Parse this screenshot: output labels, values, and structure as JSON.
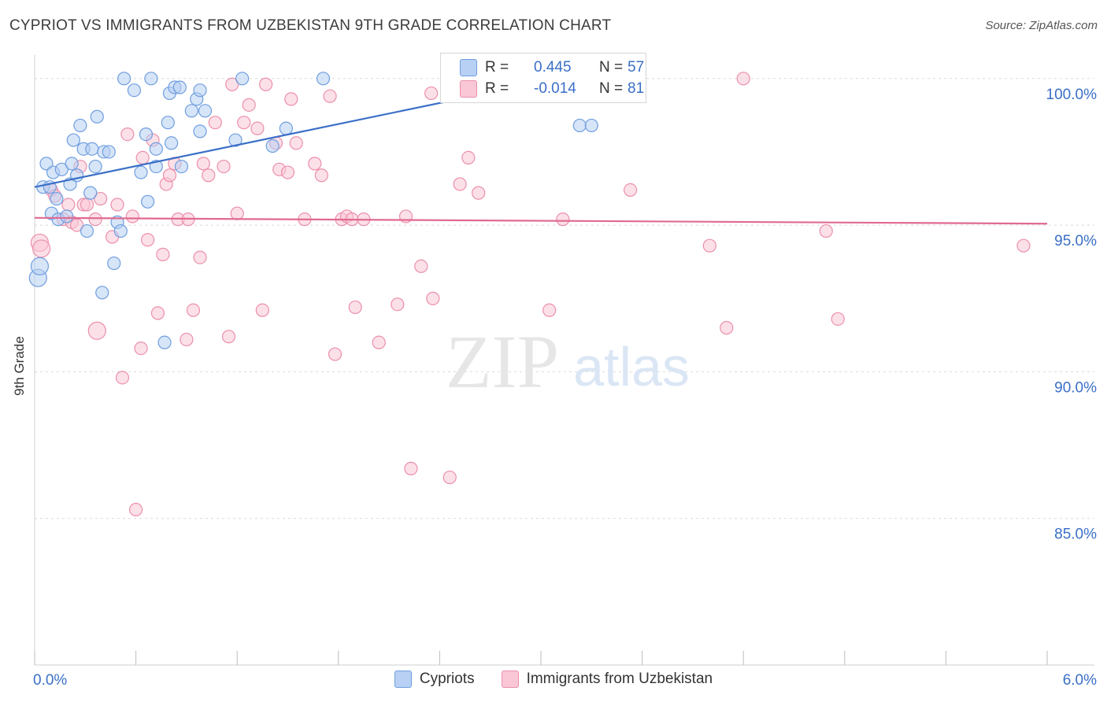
{
  "header": {
    "title": "CYPRIOT VS IMMIGRANTS FROM UZBEKISTAN 9TH GRADE CORRELATION CHART",
    "source": "Source: ZipAtlas.com"
  },
  "watermark": {
    "zip": "ZIP",
    "atlas": "atlas"
  },
  "stats": {
    "blue": {
      "r_label": "R =",
      "r_value": "0.445",
      "n_label": "N =",
      "n_value": "57"
    },
    "pink": {
      "r_label": "R =",
      "r_value": "-0.014",
      "n_label": "N =",
      "n_value": "81"
    }
  },
  "colors": {
    "blue_fill": "#b7d0f3",
    "blue_stroke": "#6f9ee0",
    "blue_line": "#3a6fc7",
    "pink_fill": "#f9c7d6",
    "pink_stroke": "#eb8fab",
    "pink_line": "#e06a92",
    "tick_label": "#3a6fc7",
    "grid": "#d9d9d9"
  },
  "chart_data": {
    "type": "scatter",
    "title": "CYPRIOT VS IMMIGRANTS FROM UZBEKISTAN 9TH GRADE CORRELATION CHART",
    "xlabel": "",
    "ylabel": "9th Grade",
    "xlim": [
      0.0,
      6.0
    ],
    "ylim": [
      80.0,
      100.8
    ],
    "x_tick_labels": [
      {
        "value": 0.0,
        "label": "0.0%"
      },
      {
        "value": 6.0,
        "label": "6.0%"
      }
    ],
    "y_tick_labels": [
      {
        "value": 100.0,
        "label": "100.0%"
      },
      {
        "value": 95.0,
        "label": "95.0%"
      },
      {
        "value": 90.0,
        "label": "90.0%"
      },
      {
        "value": 85.0,
        "label": "85.0%"
      }
    ],
    "grid": true,
    "legend_position": "bottom-center",
    "series": [
      {
        "name": "Cypriots",
        "color": "#6f9ee0",
        "trend": {
          "x": [
            0.0,
            3.1
          ],
          "y": [
            96.3,
            100.0
          ]
        },
        "points": [
          {
            "x": 0.02,
            "y": 93.2,
            "big": true
          },
          {
            "x": 0.03,
            "y": 93.6,
            "big": true
          },
          {
            "x": 0.05,
            "y": 96.3
          },
          {
            "x": 0.07,
            "y": 97.1
          },
          {
            "x": 0.09,
            "y": 96.3
          },
          {
            "x": 0.1,
            "y": 95.4
          },
          {
            "x": 0.11,
            "y": 96.8
          },
          {
            "x": 0.13,
            "y": 95.9
          },
          {
            "x": 0.14,
            "y": 95.2
          },
          {
            "x": 0.16,
            "y": 96.9
          },
          {
            "x": 0.19,
            "y": 95.3
          },
          {
            "x": 0.21,
            "y": 96.4
          },
          {
            "x": 0.22,
            "y": 97.1
          },
          {
            "x": 0.23,
            "y": 97.9
          },
          {
            "x": 0.25,
            "y": 96.7
          },
          {
            "x": 0.27,
            "y": 98.4
          },
          {
            "x": 0.29,
            "y": 97.6
          },
          {
            "x": 0.31,
            "y": 94.8
          },
          {
            "x": 0.33,
            "y": 96.1
          },
          {
            "x": 0.34,
            "y": 97.6
          },
          {
            "x": 0.36,
            "y": 97.0
          },
          {
            "x": 0.37,
            "y": 98.7
          },
          {
            "x": 0.4,
            "y": 92.7
          },
          {
            "x": 0.41,
            "y": 97.5
          },
          {
            "x": 0.44,
            "y": 97.5
          },
          {
            "x": 0.47,
            "y": 93.7
          },
          {
            "x": 0.49,
            "y": 95.1
          },
          {
            "x": 0.51,
            "y": 94.8
          },
          {
            "x": 0.53,
            "y": 100.0
          },
          {
            "x": 0.59,
            "y": 99.6
          },
          {
            "x": 0.63,
            "y": 96.8
          },
          {
            "x": 0.66,
            "y": 98.1
          },
          {
            "x": 0.67,
            "y": 95.8
          },
          {
            "x": 0.69,
            "y": 100.0
          },
          {
            "x": 0.72,
            "y": 97.6
          },
          {
            "x": 0.72,
            "y": 97.0
          },
          {
            "x": 0.77,
            "y": 91.0
          },
          {
            "x": 0.79,
            "y": 98.5
          },
          {
            "x": 0.8,
            "y": 99.5
          },
          {
            "x": 0.81,
            "y": 97.8
          },
          {
            "x": 0.83,
            "y": 99.7
          },
          {
            "x": 0.86,
            "y": 99.7
          },
          {
            "x": 0.87,
            "y": 97.0
          },
          {
            "x": 0.93,
            "y": 98.9
          },
          {
            "x": 0.96,
            "y": 99.3
          },
          {
            "x": 0.98,
            "y": 99.6
          },
          {
            "x": 0.98,
            "y": 98.2
          },
          {
            "x": 1.01,
            "y": 98.9
          },
          {
            "x": 1.19,
            "y": 97.9
          },
          {
            "x": 1.23,
            "y": 100.0
          },
          {
            "x": 1.41,
            "y": 97.7
          },
          {
            "x": 1.49,
            "y": 98.3
          },
          {
            "x": 1.71,
            "y": 100.0
          },
          {
            "x": 2.93,
            "y": 100.0
          },
          {
            "x": 3.06,
            "y": 100.0
          },
          {
            "x": 3.23,
            "y": 98.4
          },
          {
            "x": 3.3,
            "y": 98.4
          }
        ]
      },
      {
        "name": "Immigrants from Uzbekistan",
        "color": "#eb8fab",
        "trend": {
          "x": [
            0.0,
            6.0
          ],
          "y": [
            95.25,
            95.05
          ]
        },
        "points": [
          {
            "x": 0.03,
            "y": 94.4,
            "big": true
          },
          {
            "x": 0.04,
            "y": 94.2,
            "big": true
          },
          {
            "x": 0.1,
            "y": 96.2
          },
          {
            "x": 0.12,
            "y": 96.0
          },
          {
            "x": 0.17,
            "y": 95.2
          },
          {
            "x": 0.2,
            "y": 95.7
          },
          {
            "x": 0.22,
            "y": 95.1
          },
          {
            "x": 0.25,
            "y": 95.0
          },
          {
            "x": 0.27,
            "y": 97.0
          },
          {
            "x": 0.29,
            "y": 95.7
          },
          {
            "x": 0.31,
            "y": 95.7
          },
          {
            "x": 0.36,
            "y": 95.2
          },
          {
            "x": 0.37,
            "y": 91.4,
            "big": true
          },
          {
            "x": 0.39,
            "y": 95.9
          },
          {
            "x": 0.46,
            "y": 94.6
          },
          {
            "x": 0.49,
            "y": 95.7
          },
          {
            "x": 0.52,
            "y": 89.8
          },
          {
            "x": 0.55,
            "y": 98.1
          },
          {
            "x": 0.58,
            "y": 95.3
          },
          {
            "x": 0.6,
            "y": 85.3
          },
          {
            "x": 0.63,
            "y": 90.8
          },
          {
            "x": 0.64,
            "y": 97.3
          },
          {
            "x": 0.67,
            "y": 94.5
          },
          {
            "x": 0.7,
            "y": 97.9
          },
          {
            "x": 0.73,
            "y": 92.0
          },
          {
            "x": 0.76,
            "y": 94.0
          },
          {
            "x": 0.78,
            "y": 96.4
          },
          {
            "x": 0.8,
            "y": 96.7
          },
          {
            "x": 0.83,
            "y": 97.1
          },
          {
            "x": 0.85,
            "y": 95.2
          },
          {
            "x": 0.9,
            "y": 91.1
          },
          {
            "x": 0.91,
            "y": 95.2
          },
          {
            "x": 0.94,
            "y": 92.1
          },
          {
            "x": 0.98,
            "y": 93.9
          },
          {
            "x": 1.0,
            "y": 97.1
          },
          {
            "x": 1.03,
            "y": 96.7
          },
          {
            "x": 1.07,
            "y": 98.5
          },
          {
            "x": 1.12,
            "y": 97.0
          },
          {
            "x": 1.15,
            "y": 91.2
          },
          {
            "x": 1.17,
            "y": 99.8
          },
          {
            "x": 1.2,
            "y": 95.4
          },
          {
            "x": 1.24,
            "y": 98.5
          },
          {
            "x": 1.27,
            "y": 99.1
          },
          {
            "x": 1.32,
            "y": 98.3
          },
          {
            "x": 1.35,
            "y": 92.1
          },
          {
            "x": 1.37,
            "y": 99.8
          },
          {
            "x": 1.43,
            "y": 97.8
          },
          {
            "x": 1.45,
            "y": 96.9
          },
          {
            "x": 1.5,
            "y": 96.8
          },
          {
            "x": 1.52,
            "y": 99.3
          },
          {
            "x": 1.55,
            "y": 97.8
          },
          {
            "x": 1.6,
            "y": 95.2
          },
          {
            "x": 1.66,
            "y": 97.1
          },
          {
            "x": 1.7,
            "y": 96.7
          },
          {
            "x": 1.75,
            "y": 99.4
          },
          {
            "x": 1.78,
            "y": 90.6
          },
          {
            "x": 1.82,
            "y": 95.2
          },
          {
            "x": 1.85,
            "y": 95.3
          },
          {
            "x": 1.88,
            "y": 95.2
          },
          {
            "x": 1.9,
            "y": 92.2
          },
          {
            "x": 1.95,
            "y": 95.2
          },
          {
            "x": 2.04,
            "y": 91.0
          },
          {
            "x": 2.15,
            "y": 92.3
          },
          {
            "x": 2.2,
            "y": 95.3
          },
          {
            "x": 2.23,
            "y": 86.7
          },
          {
            "x": 2.29,
            "y": 93.6
          },
          {
            "x": 2.35,
            "y": 99.5
          },
          {
            "x": 2.36,
            "y": 92.5
          },
          {
            "x": 2.46,
            "y": 86.4
          },
          {
            "x": 2.52,
            "y": 96.4
          },
          {
            "x": 2.57,
            "y": 97.3
          },
          {
            "x": 2.63,
            "y": 96.1
          },
          {
            "x": 3.05,
            "y": 92.1
          },
          {
            "x": 3.13,
            "y": 95.2
          },
          {
            "x": 3.53,
            "y": 96.2
          },
          {
            "x": 4.0,
            "y": 94.3
          },
          {
            "x": 4.1,
            "y": 91.5
          },
          {
            "x": 4.2,
            "y": 100.0
          },
          {
            "x": 4.69,
            "y": 94.8
          },
          {
            "x": 4.76,
            "y": 91.8
          },
          {
            "x": 5.86,
            "y": 94.3
          }
        ]
      }
    ]
  }
}
